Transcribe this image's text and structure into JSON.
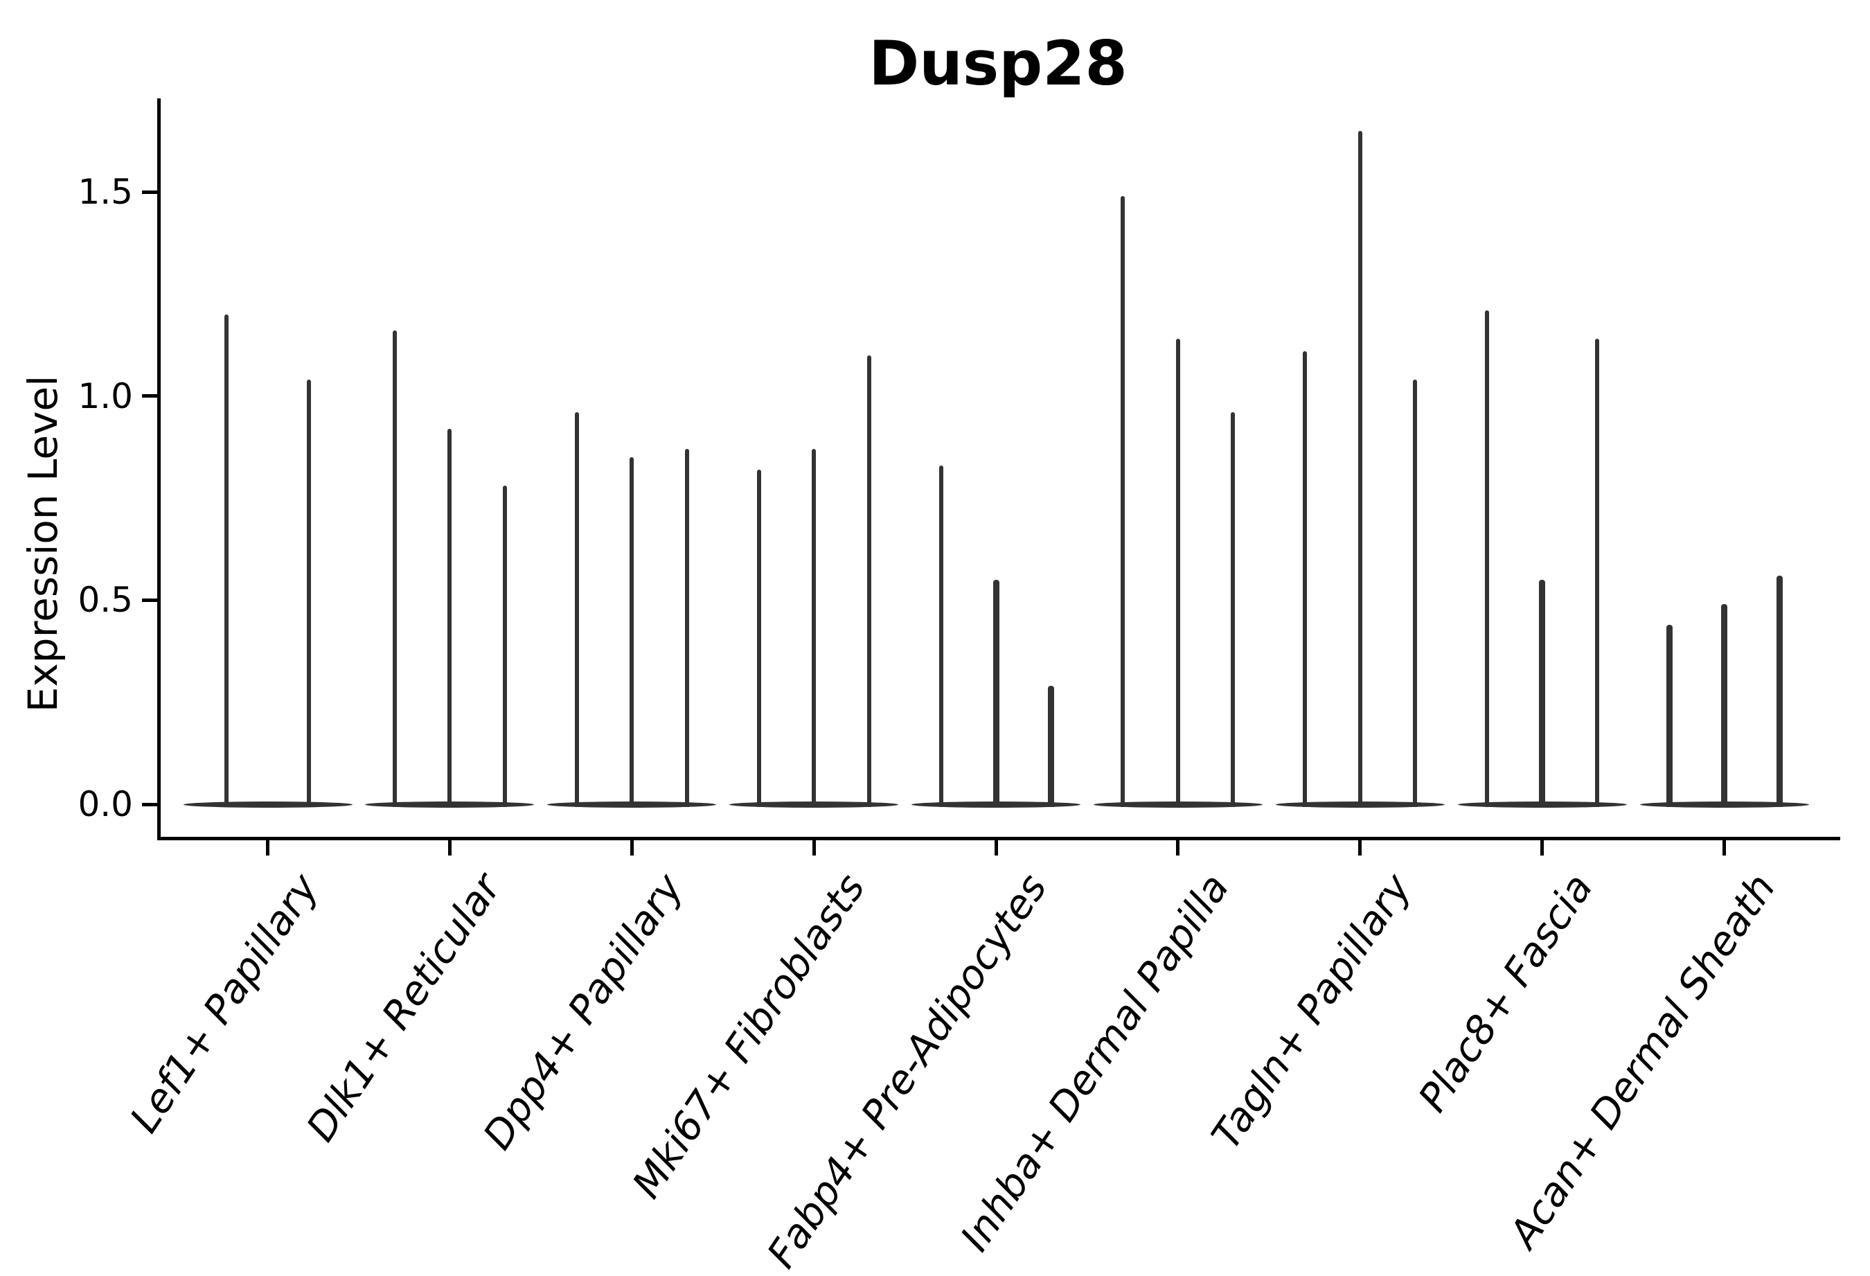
{
  "chart_data": {
    "type": "violin",
    "title": "Dusp28",
    "xlabel": "",
    "ylabel": "Expression Level",
    "yticks": [
      0.0,
      0.5,
      1.0,
      1.5
    ],
    "ylim": [
      -0.08,
      1.73
    ],
    "grid": false,
    "colors": {
      "violin": "#333333",
      "axis": "#000000",
      "text": "#000000",
      "background": "#ffffff"
    },
    "categories": [
      {
        "label": "Lef1+ Papillary",
        "violin_maxima": [
          1.2,
          1.04
        ]
      },
      {
        "label": "Dlk1+ Reticular",
        "violin_maxima": [
          1.16,
          0.92,
          0.78
        ]
      },
      {
        "label": "Dpp4+ Papillary",
        "violin_maxima": [
          0.96,
          0.85,
          0.87
        ]
      },
      {
        "label": "Mki67+ Fibroblasts",
        "violin_maxima": [
          0.82,
          0.87,
          1.1
        ]
      },
      {
        "label": "Fabp4+ Pre-Adipocytes",
        "violin_maxima": [
          0.83,
          0.55,
          0.29
        ]
      },
      {
        "label": "Inhba+ Dermal Papilla",
        "violin_maxima": [
          1.49,
          1.14,
          0.96
        ]
      },
      {
        "label": "Tagln+ Papillary",
        "violin_maxima": [
          1.11,
          1.65,
          1.04
        ]
      },
      {
        "label": "Plac8+ Fascia",
        "violin_maxima": [
          1.21,
          0.55,
          1.14
        ]
      },
      {
        "label": "Acan+ Dermal Sheath",
        "violin_maxima": [
          0.44,
          0.49,
          0.56
        ]
      }
    ]
  }
}
